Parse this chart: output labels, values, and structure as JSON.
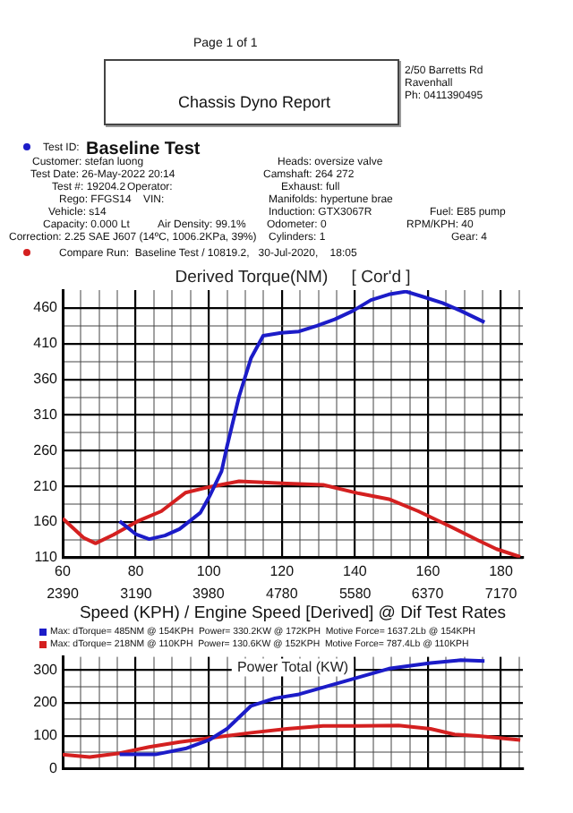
{
  "chart_data": [
    {
      "type": "line",
      "title": "Derived Torque(NM)     [ Cor'd ]",
      "xlabel": "Speed (KPH) / Engine Speed [Derived] @ Dif Test Rates",
      "xlim": [
        60,
        186
      ],
      "xticks": [
        60,
        {
          "value": 65,
          "label": null
        },
        {
          "value": 70,
          "label": null
        },
        {
          "value": 75,
          "label": null
        },
        80,
        {
          "value": 85,
          "label": null
        },
        {
          "value": 90,
          "label": null
        },
        {
          "value": 95,
          "label": null
        },
        100,
        {
          "value": 105,
          "label": null
        },
        {
          "value": 110,
          "label": null
        },
        {
          "value": 115,
          "label": null
        },
        120,
        {
          "value": 125,
          "label": null
        },
        {
          "value": 130,
          "label": null
        },
        {
          "value": 135,
          "label": null
        },
        140,
        {
          "value": 145,
          "label": null
        },
        {
          "value": 150,
          "label": null
        },
        {
          "value": 155,
          "label": null
        },
        160,
        {
          "value": 165,
          "label": null
        },
        {
          "value": 170,
          "label": null
        },
        {
          "value": 175,
          "label": null
        },
        180,
        {
          "value": 185,
          "label": null
        }
      ],
      "x2lim": [
        2390,
        7409
      ],
      "x2ticks": [
        2390,
        3190,
        3980,
        4780,
        5580,
        6370,
        7170
      ],
      "ylim": [
        110,
        485
      ],
      "yticks": [
        110,
        {
          "value": 135,
          "label": null
        },
        160,
        {
          "value": 185,
          "label": null
        },
        210,
        {
          "value": 235,
          "label": null
        },
        260,
        {
          "value": 285,
          "label": null
        },
        310,
        {
          "value": 335,
          "label": null
        },
        360,
        {
          "value": 385,
          "label": null
        },
        410,
        {
          "value": 435,
          "label": null
        },
        460
      ],
      "grid": true,
      "marker": "none",
      "series": [
        {
          "color": "#1c1cc8",
          "x": [
            75.6,
            80,
            83.7,
            88,
            92,
            97.7,
            100.2,
            103.5,
            105,
            108.3,
            111.6,
            114.9,
            119.8,
            124.7,
            129.6,
            134.5,
            139.5,
            144.4,
            149.3,
            154,
            159.1,
            164,
            169,
            175.5
          ],
          "values": [
            161,
            143,
            136,
            141,
            150,
            173,
            196,
            231,
            266,
            336,
            390,
            421,
            425,
            427,
            435,
            444,
            456,
            471,
            479,
            483,
            475,
            467,
            456,
            440
          ]
        },
        {
          "color": "#d42020",
          "x": [
            60,
            65.7,
            69,
            73.9,
            80.5,
            87,
            93.6,
            100.1,
            108.3,
            121.4,
            131.3,
            141.1,
            149.3,
            157.4,
            165.6,
            173.9,
            178.8,
            185.3
          ],
          "values": [
            165,
            138,
            130,
            142,
            161,
            175,
            201,
            209,
            217,
            214,
            212,
            200,
            192,
            175,
            155,
            134,
            122,
            111
          ]
        }
      ],
      "annotations": [
        "Page 1 of 1",
        "Chassis Dyno Report",
        "2/50 Barretts Rd",
        "Ravenhall",
        "Ph: 0411390495",
        "Test ID:",
        "Baseline Test",
        "Customer: stefan luong",
        "Test Date: 26-May-2022 20:14",
        "Test #: 19204.2",
        "Operator:",
        "Rego: FFGS14",
        "VIN:",
        "Vehicle: s14",
        "Capacity: 0.000 Lt",
        "Air Density: 99.1%",
        "Correction: 2.25 SAE J607 (14ºC, 1006.2KPa, 39%)",
        "Heads: oversize valve",
        "Camshaft: 264 272",
        "Exhaust: full",
        "Manifolds: hypertune brae",
        "Induction: GTX3067R",
        "Odometer: 0",
        "Cylinders: 1",
        "Fuel: E85 pump",
        "RPM/KPH: 40",
        "Gear: 4",
        "Compare Run:  Baseline Test / 10819.2,   30-Jul-2020,    18:05",
        "Max: dTorque= 485NM @ 154KPH  Power= 330.2KW @ 172KPH  Motive Force= 1637.2Lb @ 154KPH",
        "Max: dTorque= 218NM @ 110KPH  Power= 130.6KW @ 152KPH  Motive Force= 787.4Lb @ 110KPH"
      ]
    },
    {
      "type": "line",
      "title": "Power Total (KW)",
      "tick_labels": "y",
      "xlim": [
        60,
        186
      ],
      "xticks": [
        60,
        {
          "value": 65,
          "label": null
        },
        {
          "value": 70,
          "label": null
        },
        {
          "value": 75,
          "label": null
        },
        80,
        {
          "value": 85,
          "label": null
        },
        {
          "value": 90,
          "label": null
        },
        {
          "value": 95,
          "label": null
        },
        100,
        {
          "value": 105,
          "label": null
        },
        {
          "value": 110,
          "label": null
        },
        {
          "value": 115,
          "label": null
        },
        120,
        {
          "value": 125,
          "label": null
        },
        {
          "value": 130,
          "label": null
        },
        {
          "value": 135,
          "label": null
        },
        140,
        {
          "value": 145,
          "label": null
        },
        {
          "value": 150,
          "label": null
        },
        {
          "value": 155,
          "label": null
        },
        160,
        {
          "value": 165,
          "label": null
        },
        {
          "value": 170,
          "label": null
        },
        {
          "value": 175,
          "label": null
        },
        180,
        {
          "value": 185,
          "label": null
        }
      ],
      "ylim": [
        0,
        340
      ],
      "yticks": [
        0,
        {
          "value": 50,
          "label": null
        },
        100,
        {
          "value": 150,
          "label": null
        },
        200,
        {
          "value": 250,
          "label": null
        },
        300
      ],
      "grid": true,
      "marker": "none",
      "series": [
        {
          "color": "#1c1cc8",
          "x": [
            75.6,
            85.4,
            93.6,
            100.1,
            105,
            111.6,
            118.1,
            124.7,
            132.9,
            141.1,
            149.3,
            160.7,
            169,
            175.5
          ],
          "values": [
            43,
            43,
            61,
            87,
            121,
            191,
            214,
            226,
            252,
            278,
            304,
            321,
            330,
            327
          ]
        },
        {
          "color": "#d42020",
          "x": [
            60,
            67.4,
            75.6,
            83.7,
            92,
            101.8,
            111.6,
            121.4,
            131.3,
            141.1,
            152,
            160.7,
            167.3,
            173.9,
            185.3
          ],
          "values": [
            43,
            35,
            47,
            66,
            81,
            95,
            109,
            121,
            130,
            130,
            131,
            121,
            104,
            99,
            87
          ]
        }
      ]
    }
  ]
}
